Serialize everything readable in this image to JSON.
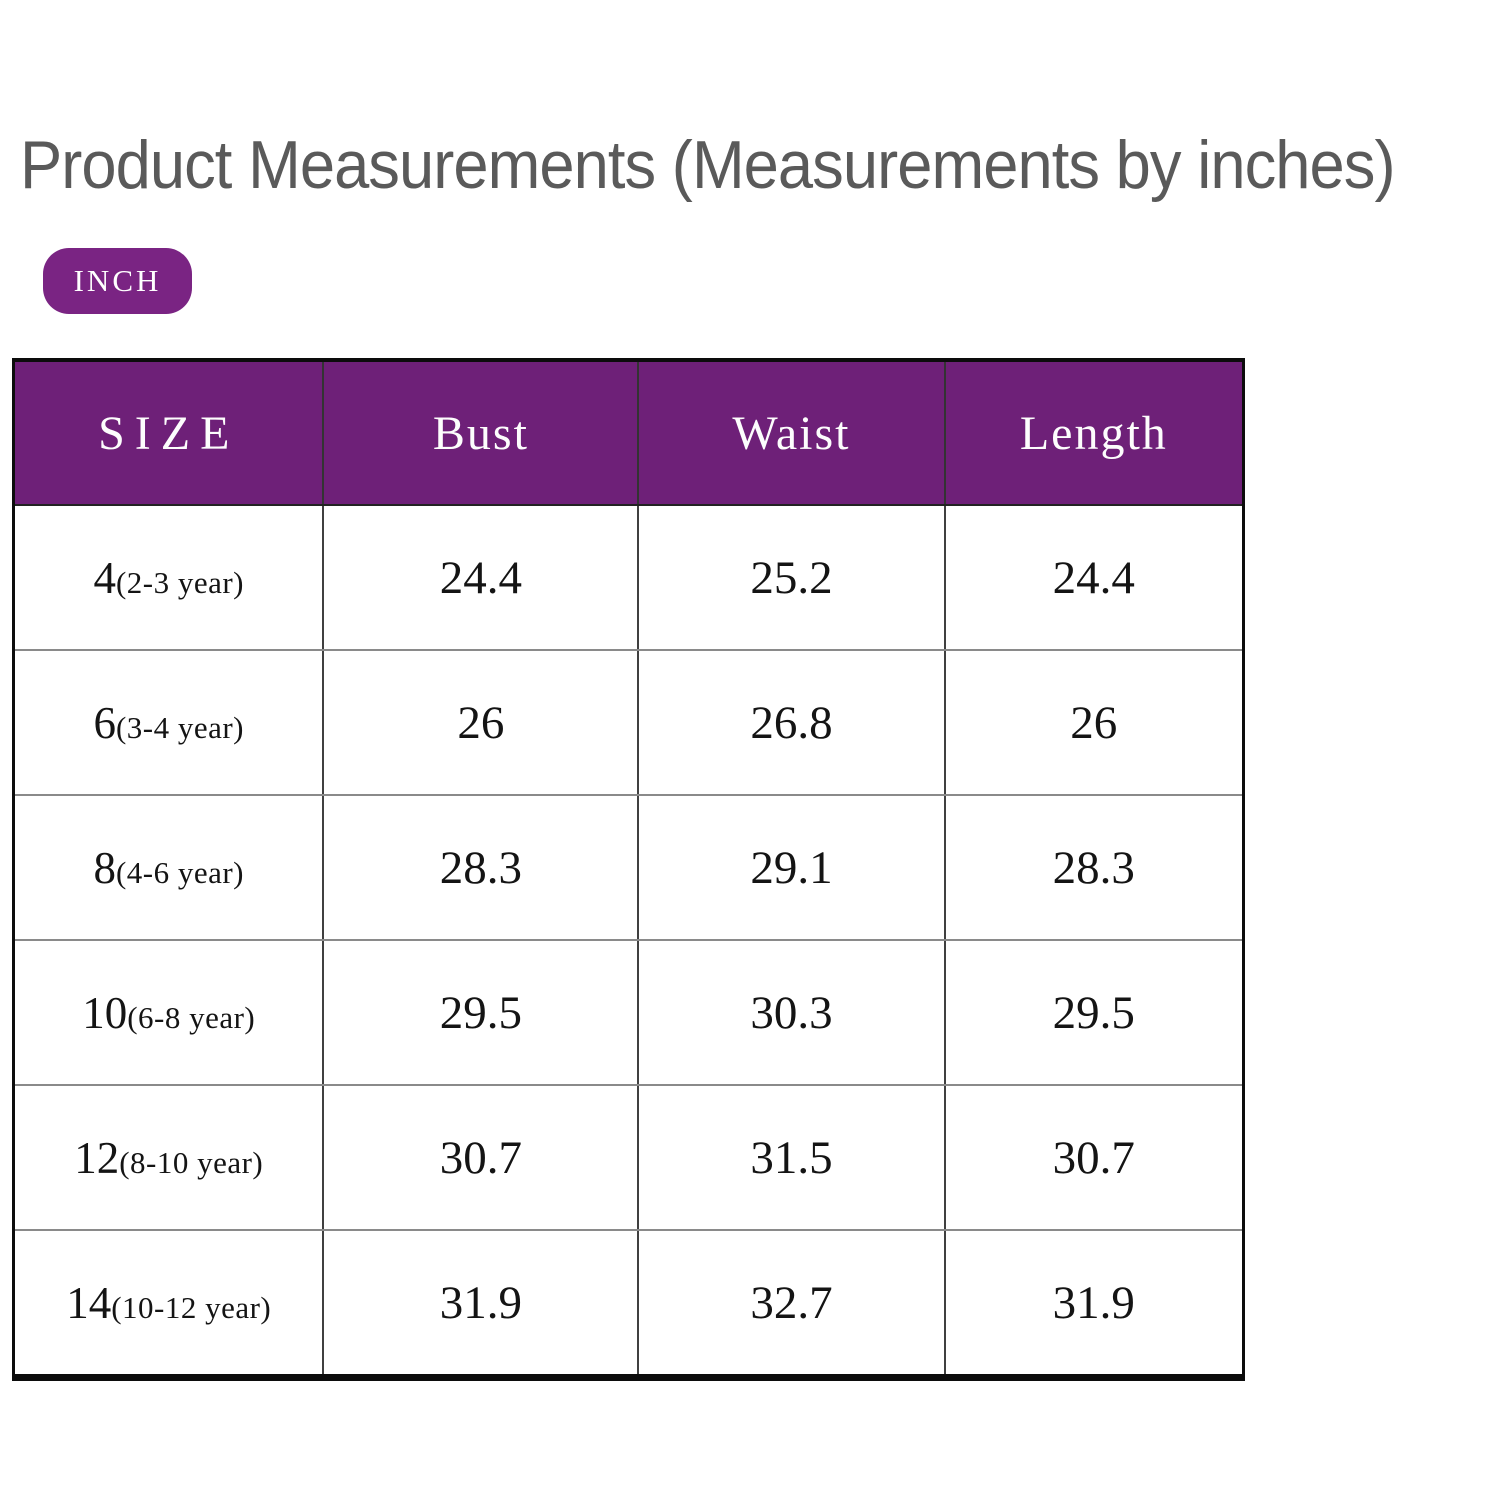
{
  "title": "Product Measurements (Measurements by inches)",
  "unit_badge": {
    "label": "INCH"
  },
  "colors": {
    "header_purple": "#6e2078",
    "badge_purple": "#7a2483",
    "title_gray": "#5a5a5a",
    "body_text": "#141414"
  },
  "table": {
    "headers": [
      "SIZE",
      "Bust",
      "Waist",
      "Length"
    ],
    "rows": [
      {
        "size": "4",
        "age": "(2-3 year)",
        "bust": "24.4",
        "waist": "25.2",
        "length": "24.4"
      },
      {
        "size": "6",
        "age": "(3-4 year)",
        "bust": "26",
        "waist": "26.8",
        "length": "26"
      },
      {
        "size": "8",
        "age": "(4-6 year)",
        "bust": "28.3",
        "waist": "29.1",
        "length": "28.3"
      },
      {
        "size": "10",
        "age": "(6-8 year)",
        "bust": "29.5",
        "waist": "30.3",
        "length": "29.5"
      },
      {
        "size": "12",
        "age": "(8-10 year)",
        "bust": "30.7",
        "waist": "31.5",
        "length": "30.7"
      },
      {
        "size": "14",
        "age": "(10-12 year)",
        "bust": "31.9",
        "waist": "32.7",
        "length": "31.9"
      }
    ]
  },
  "chart_data": {
    "type": "table",
    "title": "Product Measurements (Measurements by inches)",
    "columns": [
      "SIZE",
      "Bust",
      "Waist",
      "Length"
    ],
    "rows": [
      [
        "4(2-3 year)",
        24.4,
        25.2,
        24.4
      ],
      [
        "6(3-4 year)",
        26,
        26.8,
        26
      ],
      [
        "8(4-6 year)",
        28.3,
        29.1,
        28.3
      ],
      [
        "10(6-8 year)",
        29.5,
        30.3,
        29.5
      ],
      [
        "12(8-10 year)",
        30.7,
        31.5,
        30.7
      ],
      [
        "14(10-12 year)",
        31.9,
        32.7,
        31.9
      ]
    ]
  }
}
